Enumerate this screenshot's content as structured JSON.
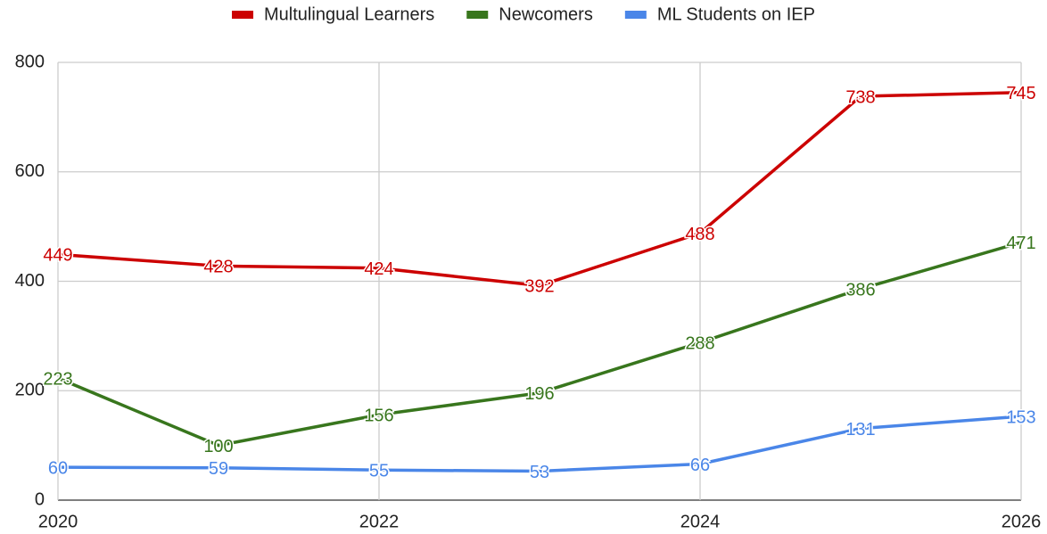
{
  "chart_data": {
    "type": "line",
    "x": [
      2020,
      2021,
      2022,
      2023,
      2024,
      2025,
      2026
    ],
    "series": [
      {
        "name": "Multulingual Learners",
        "color": "#cc0000",
        "values": [
          449,
          428,
          424,
          392,
          488,
          738,
          745
        ]
      },
      {
        "name": "Newcomers",
        "color": "#38761d",
        "values": [
          223,
          100,
          156,
          196,
          288,
          386,
          471
        ]
      },
      {
        "name": "ML Students on IEP",
        "color": "#4a86e8",
        "values": [
          60,
          59,
          55,
          53,
          66,
          131,
          153
        ]
      }
    ],
    "xlim": [
      2020,
      2026
    ],
    "xticks": [
      2020,
      2022,
      2024,
      2026
    ],
    "ylim": [
      0,
      800
    ],
    "yticks": [
      0,
      200,
      400,
      600,
      800
    ],
    "grid": true,
    "legend": "top"
  }
}
